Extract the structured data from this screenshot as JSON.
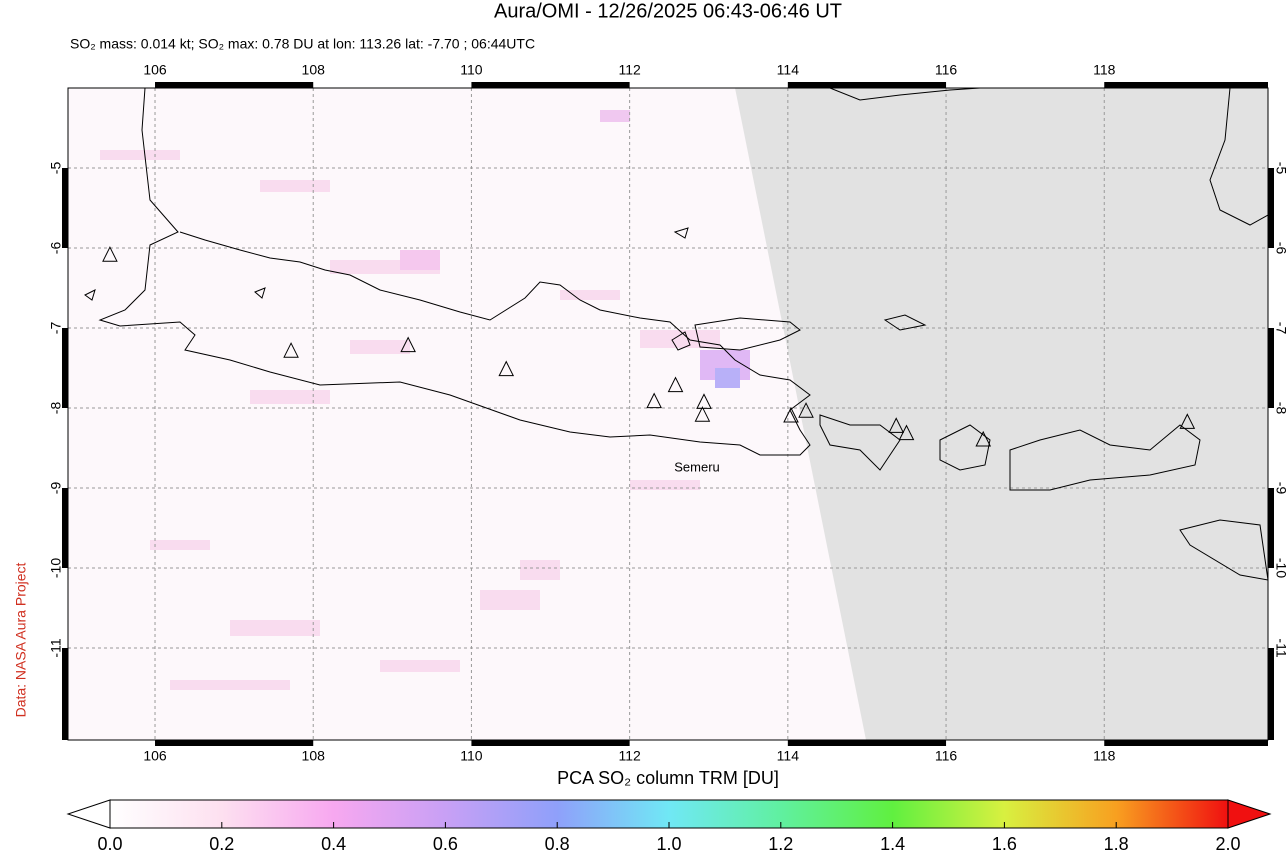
{
  "title": "Aura/OMI - 12/26/2025 06:43-06:46 UT",
  "subtitle": "SO₂ mass: 0.014 kt; SO₂ max: 0.78 DU at lon: 113.26 lat: -7.70 ; 06:44UTC",
  "credit": "Data: NASA Aura Project",
  "map": {
    "xlim": [
      104.9,
      120.07
    ],
    "ylim": [
      -12.15,
      -4
    ],
    "xticks": [
      106,
      108,
      110,
      112,
      114,
      116,
      118
    ],
    "yticks": [
      -5,
      -6,
      -7,
      -8,
      -9,
      -10,
      -11
    ],
    "volcano_label": "Semeru",
    "volcanoes": [
      [
        105.43,
        -6.09
      ],
      [
        107.72,
        -7.29
      ],
      [
        109.2,
        -7.22
      ],
      [
        110.44,
        -7.52
      ],
      [
        112.31,
        -7.92
      ],
      [
        112.58,
        -7.72
      ],
      [
        112.94,
        -7.93
      ],
      [
        112.92,
        -8.09
      ],
      [
        114.04,
        -8.1
      ],
      [
        114.23,
        -8.04
      ],
      [
        115.37,
        -8.23
      ],
      [
        115.5,
        -8.32
      ],
      [
        116.47,
        -8.4
      ],
      [
        119.05,
        -8.18
      ]
    ]
  },
  "colorbar": {
    "label": "PCA SO₂ column TRM [DU]",
    "lim": [
      0,
      2
    ],
    "ticks": [
      {
        "value": 0,
        "label": "0.0"
      },
      {
        "value": 0.2,
        "label": "0.2"
      },
      {
        "value": 0.4,
        "label": "0.4"
      },
      {
        "value": 0.6,
        "label": "0.6"
      },
      {
        "value": 0.8,
        "label": "0.8"
      },
      {
        "value": 1,
        "label": "1.0"
      },
      {
        "value": 1.2,
        "label": "1.2"
      },
      {
        "value": 1.4,
        "label": "1.4"
      },
      {
        "value": 1.6,
        "label": "1.6"
      },
      {
        "value": 1.8,
        "label": "1.8"
      },
      {
        "value": 2,
        "label": "2.0"
      }
    ]
  }
}
